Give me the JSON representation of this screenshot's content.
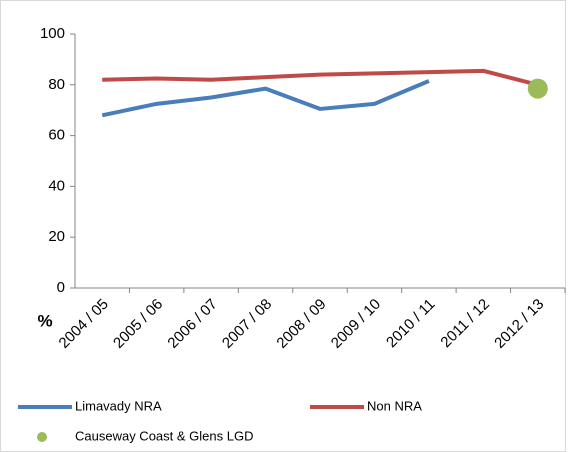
{
  "chart_data": {
    "type": "line",
    "y_label": "%",
    "categories": [
      "2004 / 05",
      "2005 / 06",
      "2006 / 07",
      "2007 / 08",
      "2008 / 09",
      "2009 / 10",
      "2010 / 11",
      "2011 / 12",
      "2012 / 13"
    ],
    "series": [
      {
        "name": "Limavady NRA",
        "color": "#4a7ebb",
        "values": [
          68,
          72.5,
          75,
          78.5,
          70.5,
          72.5,
          81.5,
          null,
          null
        ]
      },
      {
        "name": "Non NRA",
        "color": "#be4b48",
        "values": [
          82,
          82.5,
          82,
          83,
          84,
          84.5,
          85,
          85.5,
          80
        ]
      },
      {
        "name": "Causeway Coast & Glens LGD",
        "color": "#9bbb59",
        "marker": "circle",
        "values": [
          null,
          null,
          null,
          null,
          null,
          null,
          null,
          null,
          78.5
        ]
      }
    ],
    "ylim": [
      0,
      100
    ],
    "yticks": [
      0,
      20,
      40,
      60,
      80,
      100
    ],
    "grid": false,
    "legend": "bottom"
  }
}
